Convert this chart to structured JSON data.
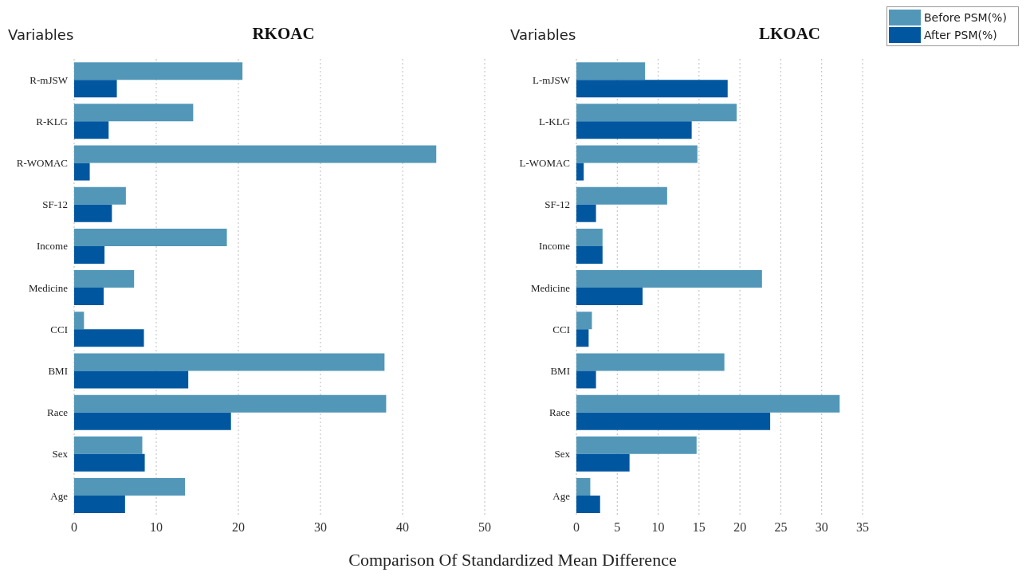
{
  "chart_data": [
    {
      "type": "bar",
      "orientation": "horizontal",
      "title": "RKOAC",
      "ylabel": "Variables",
      "xlabel": "Comparison Of Standardized Mean Difference",
      "categories": [
        "R-mJSW",
        "R-KLG",
        "R-WOMAC",
        "SF-12",
        "Income",
        "Medicine",
        "CCI",
        "BMI",
        "Race",
        "Sex",
        "Age"
      ],
      "series": [
        {
          "color": "#5297b8",
          "values": [
            20.5,
            14.5,
            44.1,
            6.3,
            18.6,
            7.3,
            1.2,
            37.8,
            38.0,
            8.3,
            13.5
          ]
        },
        {
          "color": "#0057a0",
          "values": [
            5.2,
            4.2,
            1.9,
            4.6,
            3.7,
            3.6,
            8.5,
            13.9,
            19.1,
            8.6,
            6.2
          ]
        }
      ],
      "xlim": [
        0,
        50
      ],
      "xticks": [
        0,
        10,
        20,
        30,
        40,
        50
      ],
      "grid": "x",
      "legend": false
    },
    {
      "type": "bar",
      "orientation": "horizontal",
      "title": "LKOAC",
      "ylabel": "Variables",
      "categories": [
        "L-mJSW",
        "L-KLG",
        "L-WOMAC",
        "SF-12",
        "Income",
        "Medicine",
        "CCI",
        "BMI",
        "Race",
        "Sex",
        "Age"
      ],
      "series": [
        {
          "name": "Before PSM(%)",
          "color": "#5297b8",
          "values": [
            8.4,
            19.6,
            14.8,
            11.1,
            3.2,
            22.7,
            1.9,
            18.1,
            32.2,
            14.7,
            1.7
          ]
        },
        {
          "name": "After PSM(%)",
          "color": "#0057a0",
          "values": [
            18.5,
            14.1,
            0.9,
            2.4,
            3.2,
            8.1,
            1.5,
            2.4,
            23.7,
            6.5,
            2.9
          ]
        }
      ],
      "xlim": [
        0,
        35
      ],
      "xticks": [
        0,
        5,
        10,
        15,
        20,
        25,
        30,
        35
      ],
      "grid": "x",
      "legend": "top right"
    }
  ]
}
